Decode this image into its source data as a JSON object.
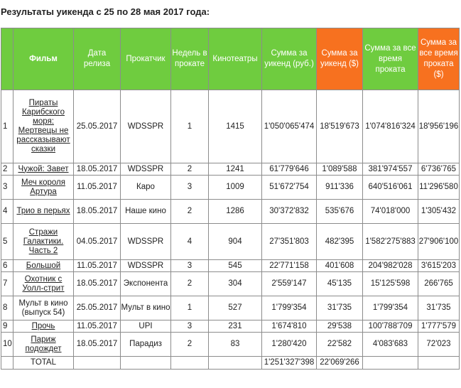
{
  "title": "Результаты уикенда с 25 по 28 мая 2017 года:",
  "colors": {
    "header_green": "#6fcc3f",
    "header_orange": "#f7711f",
    "border": "#8c8c8c"
  },
  "headers": {
    "num": "",
    "film": "Фильм",
    "release": "Дата релиза",
    "distributor": "Прокатчик",
    "weeks": "Недель в прокате",
    "theaters": "Кинотеатры",
    "weekend_rub": "Сумма за уикенд (руб.)",
    "weekend_usd": "Сумма за уикенд ($)",
    "total_rub": "Сумма за все время проката",
    "total_usd": "Сумма за все время проката ($)"
  },
  "rows": [
    {
      "num": "1",
      "film": "Пираты Карибского моря: Мертвецы не рассказывают сказки",
      "release": "25.05.2017",
      "distributor": "WDSSPR",
      "weeks": "1",
      "theaters": "1415",
      "weekend_rub": "1'050'065'474",
      "weekend_usd": "18'519'673",
      "total_rub": "1'074'816'324",
      "total_usd": "18'956'196"
    },
    {
      "num": "2",
      "film": "Чужой: Завет",
      "release": "18.05.2017",
      "distributor": "WDSSPR",
      "weeks": "2",
      "theaters": "1241",
      "weekend_rub": "61'779'646",
      "weekend_usd": "1'089'588",
      "total_rub": "381'974'557",
      "total_usd": "6'736'765"
    },
    {
      "num": "3",
      "film": "Меч короля Артура",
      "release": "11.05.2017",
      "distributor": "Каро",
      "weeks": "3",
      "theaters": "1009",
      "weekend_rub": "51'672'754",
      "weekend_usd": "911'336",
      "total_rub": "640'516'061",
      "total_usd": "11'296'580"
    },
    {
      "num": "4",
      "film": "Трио в перьях",
      "release": "18.05.2017",
      "distributor": "Наше кино",
      "weeks": "2",
      "theaters": "1286",
      "weekend_rub": "30'372'832",
      "weekend_usd": "535'676",
      "total_rub": "74'018'000",
      "total_usd": "1'305'432"
    },
    {
      "num": "5",
      "film": "Стражи Галактики. Часть 2",
      "release": "04.05.2017",
      "distributor": "WDSSPR",
      "weeks": "4",
      "theaters": "904",
      "weekend_rub": "27'351'803",
      "weekend_usd": "482'395",
      "total_rub": "1'582'275'883",
      "total_usd": "27'906'100"
    },
    {
      "num": "6",
      "film": "Большой",
      "release": "11.05.2017",
      "distributor": "WDSSPR",
      "weeks": "3",
      "theaters": "545",
      "weekend_rub": "22'771'158",
      "weekend_usd": "401'608",
      "total_rub": "204'982'028",
      "total_usd": "3'615'203"
    },
    {
      "num": "7",
      "film": "Охотник с Уолл-стрит",
      "release": "18.05.2017",
      "distributor": "Экспонента",
      "weeks": "2",
      "theaters": "304",
      "weekend_rub": "2'559'147",
      "weekend_usd": "45'135",
      "total_rub": "15'125'598",
      "total_usd": "266'765"
    },
    {
      "num": "8",
      "film": "Мульт в кино (выпуск 54)",
      "release": "25.05.2017",
      "distributor": "Мульт в кино",
      "weeks": "1",
      "theaters": "527",
      "weekend_rub": "1'799'354",
      "weekend_usd": "31'735",
      "total_rub": "1'799'354",
      "total_usd": "31'735"
    },
    {
      "num": "9",
      "film": "Прочь",
      "release": "11.05.2017",
      "distributor": "UPI",
      "weeks": "3",
      "theaters": "231",
      "weekend_rub": "1'674'810",
      "weekend_usd": "29'538",
      "total_rub": "100'788'709",
      "total_usd": "1'777'579"
    },
    {
      "num": "10",
      "film": "Париж подождет",
      "release": "18.05.2017",
      "distributor": "Парадиз",
      "weeks": "2",
      "theaters": "83",
      "weekend_rub": "1'280'420",
      "weekend_usd": "22'582",
      "total_rub": "4'083'683",
      "total_usd": "72'023"
    }
  ],
  "total": {
    "label": "TOTAL",
    "weekend_rub": "1'251'327'398",
    "weekend_usd": "22'069'266"
  }
}
